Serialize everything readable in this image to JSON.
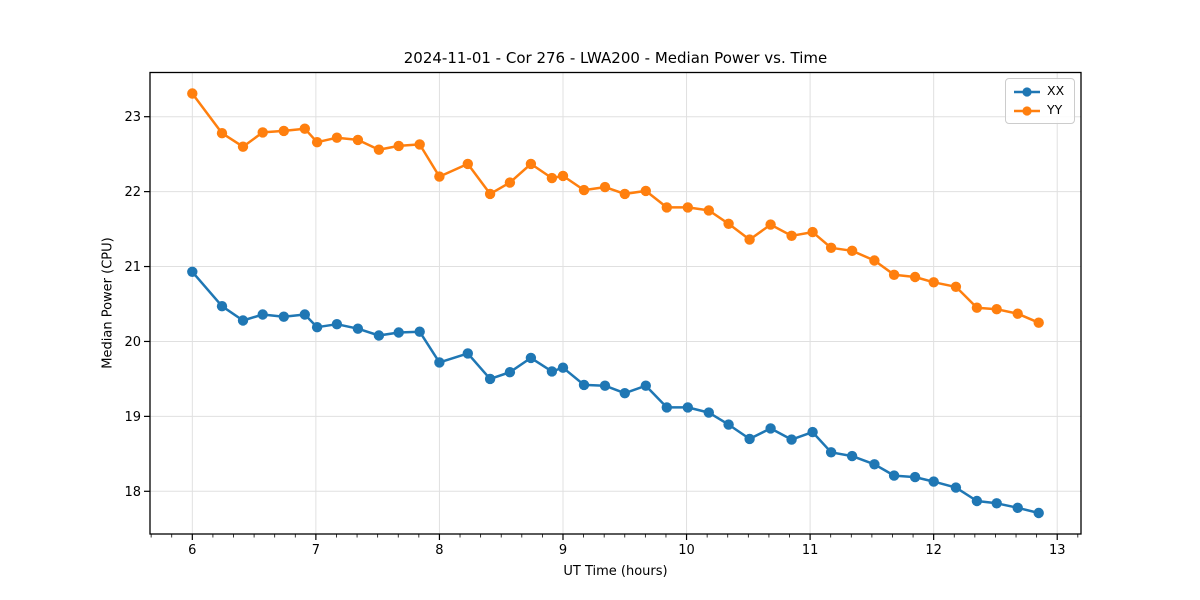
{
  "chart_data": {
    "type": "line",
    "title": "2024-11-01 - Cor 276 - LWA200 - Median Power vs. Time",
    "xlabel": "UT Time (hours)",
    "ylabel": "Median Power (CPU)",
    "xlim": [
      5.6575,
      13.1925
    ],
    "ylim": [
      17.43,
      23.59
    ],
    "xticks": [
      6,
      7,
      8,
      9,
      10,
      11,
      12,
      13
    ],
    "yticks": [
      18,
      19,
      20,
      21,
      22,
      23
    ],
    "x_minor_tick_step": 0.166667,
    "grid": true,
    "grid_color": "#e0e0e0",
    "legend_position": "upper right",
    "x": [
      6.0,
      6.24,
      6.41,
      6.57,
      6.74,
      6.91,
      7.01,
      7.17,
      7.34,
      7.51,
      7.67,
      7.84,
      8.0,
      8.23,
      8.41,
      8.57,
      8.74,
      8.91,
      9.0,
      9.17,
      9.34,
      9.5,
      9.67,
      9.84,
      10.01,
      10.18,
      10.34,
      10.51,
      10.68,
      10.85,
      11.02,
      11.17,
      11.34,
      11.52,
      11.68,
      11.85,
      12.0,
      12.18,
      12.35,
      12.51,
      12.68,
      12.85
    ],
    "series": [
      {
        "name": "XX",
        "color": "#1f77b4",
        "values": [
          20.93,
          20.47,
          20.28,
          20.36,
          20.33,
          20.36,
          20.19,
          20.23,
          20.17,
          20.08,
          20.12,
          20.13,
          19.72,
          19.84,
          19.5,
          19.59,
          19.78,
          19.6,
          19.65,
          19.42,
          19.41,
          19.31,
          19.41,
          19.12,
          19.12,
          19.05,
          18.89,
          18.7,
          18.84,
          18.69,
          18.79,
          18.52,
          18.47,
          18.36,
          18.21,
          18.19,
          18.13,
          18.05,
          17.87,
          17.84,
          17.78,
          17.71
        ]
      },
      {
        "name": "YY",
        "color": "#ff7f0e",
        "values": [
          23.31,
          22.78,
          22.6,
          22.79,
          22.81,
          22.84,
          22.66,
          22.72,
          22.69,
          22.56,
          22.61,
          22.63,
          22.2,
          22.37,
          21.97,
          22.12,
          22.37,
          22.18,
          22.21,
          22.02,
          22.06,
          21.97,
          22.01,
          21.79,
          21.79,
          21.75,
          21.57,
          21.36,
          21.56,
          21.41,
          21.46,
          21.25,
          21.21,
          21.08,
          20.89,
          20.86,
          20.79,
          20.73,
          20.45,
          20.43,
          20.37,
          20.25
        ]
      }
    ]
  }
}
